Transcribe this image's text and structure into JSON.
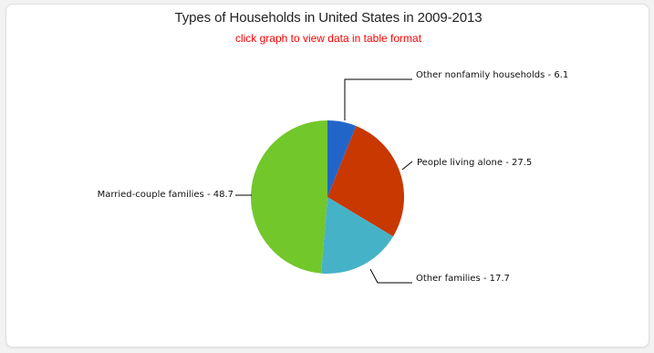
{
  "chart_data": {
    "type": "pie",
    "title": "Types of Households in United States in 2009-2013",
    "subtitle": "click graph to view data in table format",
    "slices": [
      {
        "label": "Other nonfamily households",
        "value": 6.1,
        "color": "#2265c9"
      },
      {
        "label": "People living alone",
        "value": 27.5,
        "color": "#c83800"
      },
      {
        "label": "Other families",
        "value": 17.7,
        "color": "#46b2c8"
      },
      {
        "label": "Married-couple families",
        "value": 48.7,
        "color": "#72c72a"
      }
    ]
  },
  "colors": {
    "title": "#222222",
    "subtitle": "#ff0000",
    "leader_line": "#000000"
  }
}
